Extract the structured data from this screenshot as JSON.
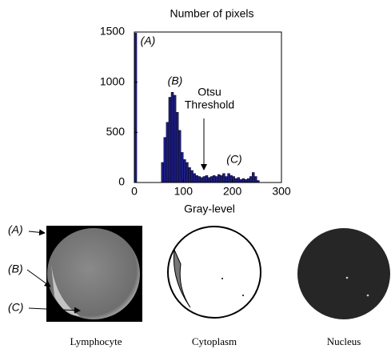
{
  "chart_data": {
    "type": "histogram",
    "title": "Number of pixels",
    "x_label": "Gray-level",
    "bins": [
      0,
      5,
      10,
      15,
      20,
      25,
      30,
      35,
      40,
      45,
      50,
      55,
      60,
      65,
      70,
      75,
      80,
      85,
      90,
      95,
      100,
      105,
      110,
      115,
      120,
      125,
      130,
      135,
      140,
      145,
      150,
      155,
      160,
      165,
      170,
      175,
      180,
      185,
      190,
      195,
      200,
      205,
      210,
      215,
      220,
      225,
      230,
      235,
      240,
      245,
      250,
      255
    ],
    "counts": [
      1490,
      0,
      0,
      0,
      0,
      0,
      0,
      0,
      0,
      0,
      0,
      200,
      450,
      600,
      850,
      900,
      870,
      700,
      520,
      300,
      230,
      200,
      150,
      120,
      90,
      70,
      60,
      50,
      60,
      70,
      50,
      60,
      70,
      60,
      80,
      70,
      90,
      60,
      90,
      70,
      60,
      40,
      50,
      30,
      40,
      30,
      40,
      60,
      100,
      60,
      20
    ],
    "color": "#1c1c80",
    "xlim": [
      0,
      300
    ],
    "xticks": [
      0,
      100,
      200,
      300
    ],
    "ylim": [
      0,
      1500
    ],
    "yticks": [
      0,
      500,
      1000,
      1500
    ],
    "annotations": [
      "(A)",
      "(B)",
      "Otsu",
      "Threshold",
      "(C)"
    ]
  },
  "image_labels": [
    "(A)",
    "(B)",
    "(C)"
  ],
  "images": [
    {
      "caption": "Lymphocyte"
    },
    {
      "caption": "Cytoplasm"
    },
    {
      "caption": "Nucleus"
    }
  ]
}
